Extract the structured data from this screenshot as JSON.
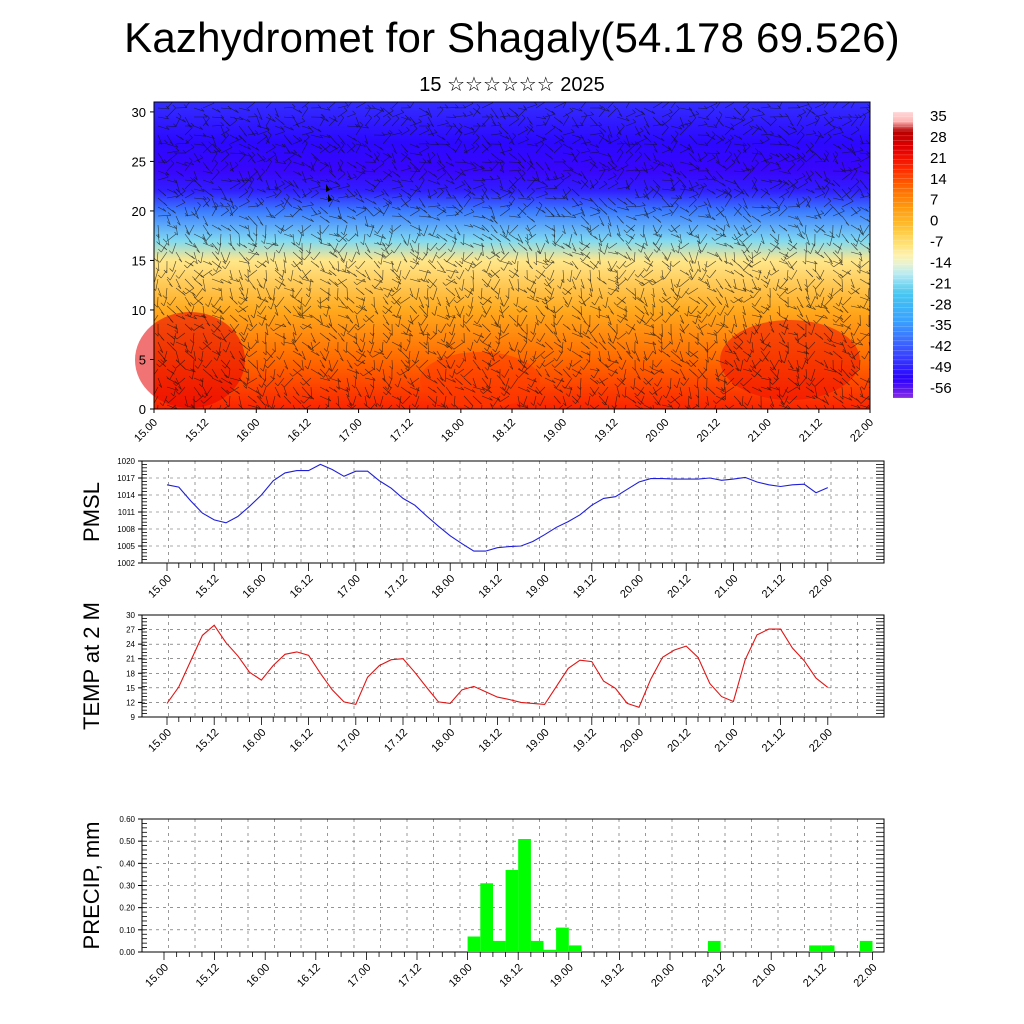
{
  "header": {
    "title": "Kazhydromet for Shagaly(54.178 69.526)",
    "subtitle": "15 ☆☆☆☆☆☆ 2025"
  },
  "time_labels": [
    "15.00",
    "15.12",
    "16.00",
    "16.12",
    "17.00",
    "17.12",
    "18.00",
    "18.12",
    "19.00",
    "19.12",
    "20.00",
    "20.12",
    "21.00",
    "21.12",
    "22.00"
  ],
  "colors": {
    "pmsl_line": "#1f1fd9",
    "temp_line": "#e01515",
    "precip_bar": "#00ff00"
  },
  "chart_data": [
    {
      "type": "heatmap",
      "yticks": [
        "0",
        "5",
        "10",
        "15",
        "20",
        "25",
        "30"
      ],
      "ylim": [
        0,
        31
      ],
      "colorbar_labels": [
        "35",
        "28",
        "21",
        "14",
        "7",
        "0",
        "-7",
        "-14",
        "-21",
        "-28",
        "-35",
        "-42",
        "-49",
        "-56"
      ],
      "colorbar_range": [
        -63,
        42
      ],
      "wind_vectors": true,
      "layers": [
        {
          "level": 0,
          "value": 22
        },
        {
          "level": 5,
          "value": 14
        },
        {
          "level": 10,
          "value": 4
        },
        {
          "level": 15,
          "value": -8
        },
        {
          "level": 17,
          "value": -21
        },
        {
          "level": 20,
          "value": -40
        },
        {
          "level": 22,
          "value": -52
        },
        {
          "level": 24,
          "value": -57
        },
        {
          "level": 27,
          "value": -55
        },
        {
          "level": 31,
          "value": -50
        }
      ]
    },
    {
      "type": "line",
      "ylabel": "PMSL",
      "yticks": [
        "1020",
        "1017",
        "1014",
        "1011",
        "1008",
        "1005",
        "1002"
      ],
      "ylim": [
        1002,
        1020
      ],
      "grid": true,
      "x": [
        0,
        1,
        2,
        3,
        4,
        5,
        6,
        7,
        8,
        9,
        10,
        11,
        12,
        13,
        14,
        15,
        16,
        17,
        18,
        19,
        20,
        21,
        22,
        23,
        24,
        25,
        26,
        27,
        28,
        29,
        30,
        31,
        32,
        33,
        34,
        35,
        36,
        37,
        38,
        39,
        40,
        41,
        42,
        43,
        44,
        45,
        46,
        47,
        48,
        49,
        50,
        51,
        52,
        53,
        54,
        55,
        56
      ],
      "series": [
        {
          "values": [
            1015.8,
            1015.4,
            1013.0,
            1010.8,
            1009.6,
            1009.1,
            1010.2,
            1012.0,
            1014.0,
            1016.5,
            1017.9,
            1018.3,
            1018.3,
            1019.4,
            1018.5,
            1017.3,
            1018.2,
            1018.2,
            1016.5,
            1015.2,
            1013.4,
            1012.2,
            1010.3,
            1008.5,
            1006.8,
            1005.4,
            1004.1,
            1004.1,
            1004.7,
            1004.9,
            1005.0,
            1005.8,
            1007.0,
            1008.3,
            1009.3,
            1010.5,
            1012.2,
            1013.4,
            1013.7,
            1015.0,
            1016.3,
            1016.9,
            1016.9,
            1016.8,
            1016.8,
            1016.8,
            1017.0,
            1016.6,
            1016.8,
            1017.1,
            1016.3,
            1015.8,
            1015.5,
            1015.8,
            1015.9,
            1014.4,
            1015.3
          ]
        }
      ]
    },
    {
      "type": "line",
      "ylabel": "TEMP at 2 M",
      "yticks": [
        "30",
        "27",
        "24",
        "21",
        "18",
        "15",
        "12",
        "9"
      ],
      "ylim": [
        9,
        30
      ],
      "grid": true,
      "x": [
        0,
        1,
        2,
        3,
        4,
        5,
        6,
        7,
        8,
        9,
        10,
        11,
        12,
        13,
        14,
        15,
        16,
        17,
        18,
        19,
        20,
        21,
        22,
        23,
        24,
        25,
        26,
        27,
        28,
        29,
        30,
        31,
        32,
        33,
        34,
        35,
        36,
        37,
        38,
        39,
        40,
        41,
        42,
        43,
        44,
        45,
        46,
        47,
        48,
        49,
        50,
        51,
        52,
        53,
        54,
        55,
        56
      ],
      "series": [
        {
          "values": [
            11.8,
            15.2,
            20.5,
            25.8,
            27.9,
            24.3,
            21.6,
            18.2,
            16.6,
            19.6,
            21.9,
            22.4,
            21.7,
            18.0,
            14.6,
            12.1,
            11.6,
            17.2,
            19.6,
            20.8,
            21.0,
            18.2,
            15.1,
            12.1,
            11.8,
            14.6,
            15.3,
            14.2,
            13.1,
            12.6,
            12.0,
            11.8,
            11.6,
            15.3,
            19.0,
            20.7,
            20.4,
            16.4,
            14.9,
            11.8,
            11.0,
            16.8,
            21.3,
            22.8,
            23.6,
            21.3,
            15.9,
            13.2,
            12.2,
            20.8,
            25.9,
            27.1,
            27.1,
            23.2,
            20.6,
            17.0,
            15.1
          ]
        }
      ]
    },
    {
      "type": "bar",
      "ylabel": "PRECIP, mm",
      "yticks": [
        "0.60",
        "0.50",
        "0.40",
        "0.30",
        "0.20",
        "0.10",
        "0.00"
      ],
      "ylim": [
        0,
        0.6
      ],
      "grid": true,
      "bars": [
        {
          "t": 24.5,
          "value": 0.07
        },
        {
          "t": 25.5,
          "value": 0.31
        },
        {
          "t": 26.5,
          "value": 0.05
        },
        {
          "t": 27.5,
          "value": 0.37
        },
        {
          "t": 28.5,
          "value": 0.51
        },
        {
          "t": 29.5,
          "value": 0.05
        },
        {
          "t": 30.5,
          "value": 0.01
        },
        {
          "t": 31.5,
          "value": 0.11
        },
        {
          "t": 32.5,
          "value": 0.03
        },
        {
          "t": 43.5,
          "value": 0.05
        },
        {
          "t": 51.5,
          "value": 0.03
        },
        {
          "t": 52.5,
          "value": 0.03
        },
        {
          "t": 55.5,
          "value": 0.05
        }
      ]
    }
  ]
}
